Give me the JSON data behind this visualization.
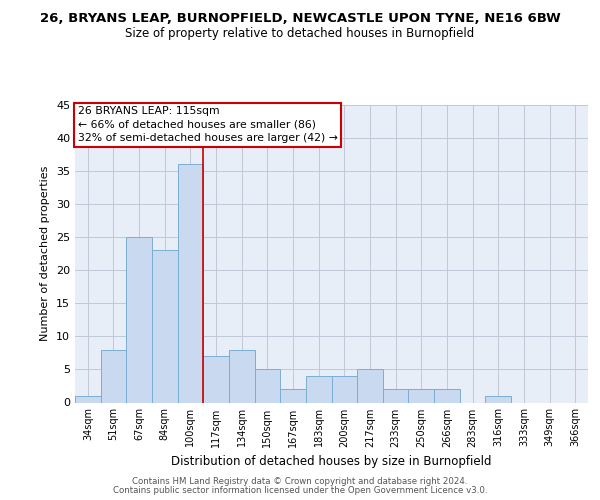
{
  "title_line1": "26, BRYANS LEAP, BURNOPFIELD, NEWCASTLE UPON TYNE, NE16 6BW",
  "title_line2": "Size of property relative to detached houses in Burnopfield",
  "xlabel": "Distribution of detached houses by size in Burnopfield",
  "ylabel": "Number of detached properties",
  "categories": [
    "34sqm",
    "51sqm",
    "67sqm",
    "84sqm",
    "100sqm",
    "117sqm",
    "134sqm",
    "150sqm",
    "167sqm",
    "183sqm",
    "200sqm",
    "217sqm",
    "233sqm",
    "250sqm",
    "266sqm",
    "283sqm",
    "316sqm",
    "333sqm",
    "349sqm",
    "366sqm"
  ],
  "values": [
    1,
    8,
    25,
    23,
    36,
    7,
    8,
    5,
    2,
    4,
    4,
    5,
    2,
    2,
    2,
    0,
    1,
    0,
    0,
    0
  ],
  "bar_color": "#c9daf0",
  "bar_edge_color": "#7baed4",
  "grid_color": "#c0c8d8",
  "background_color": "#e8eef8",
  "property_line_x": 4.5,
  "property_line_color": "#cc0000",
  "annotation_line1": "26 BRYANS LEAP: 115sqm",
  "annotation_line2": "← 66% of detached houses are smaller (86)",
  "annotation_line3": "32% of semi-detached houses are larger (42) →",
  "annotation_box_color": "#cc0000",
  "ylim": [
    0,
    45
  ],
  "yticks": [
    0,
    5,
    10,
    15,
    20,
    25,
    30,
    35,
    40,
    45
  ],
  "footer_line1": "Contains HM Land Registry data © Crown copyright and database right 2024.",
  "footer_line2": "Contains public sector information licensed under the Open Government Licence v3.0."
}
